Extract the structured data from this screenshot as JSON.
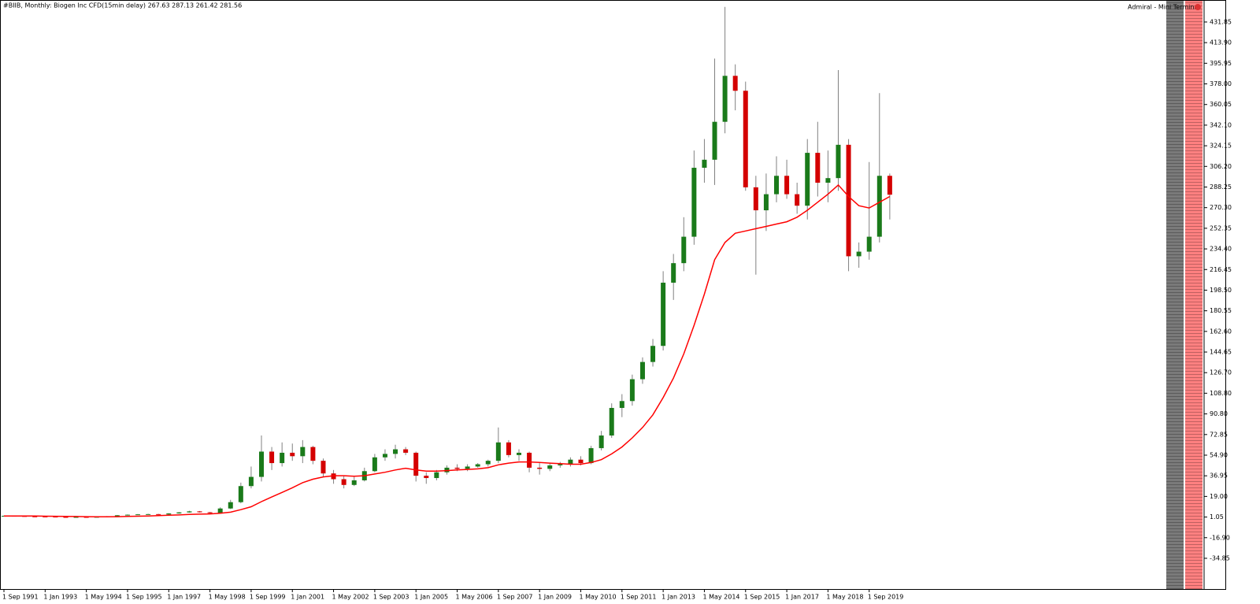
{
  "header": {
    "symbol_info": "#BIIB, Monthly:  Biogen Inc CFD(15min delay)  267.63 287.13 261.42 281.56",
    "panel_title": "Admiral - Mini Terminal"
  },
  "chart_data": {
    "type": "candlestick",
    "categories": [
      "1 Sep 1991",
      null,
      null,
      null,
      "1 Jan 1993",
      null,
      null,
      null,
      "1 May 1994",
      null,
      null,
      null,
      "1 Sep 1995",
      null,
      null,
      null,
      "1 Jan 1997",
      null,
      null,
      null,
      "1 May 1998",
      null,
      null,
      null,
      "1 Sep 1999",
      null,
      null,
      null,
      "1 Jan 2001",
      null,
      null,
      null,
      "1 May 2002",
      null,
      null,
      null,
      "1 Sep 2003",
      null,
      null,
      null,
      "1 Jan 2005",
      null,
      null,
      null,
      "1 May 2006",
      null,
      null,
      null,
      "1 Sep 2007",
      null,
      null,
      null,
      "1 Jan 2009",
      null,
      null,
      null,
      "1 May 2010",
      null,
      null,
      null,
      "1 Sep 2011",
      null,
      null,
      null,
      "1 Jan 2013",
      null,
      null,
      null,
      "1 May 2014",
      null,
      null,
      null,
      "1 Sep 2015",
      null,
      null,
      null,
      "1 Jan 2017",
      null,
      null,
      null,
      "1 May 2018",
      null,
      null,
      null,
      "1 Sep 2019",
      null,
      null
    ],
    "open": [
      2.0,
      2.1,
      1.9,
      1.6,
      1.5,
      1.4,
      1.1,
      1.0,
      1.1,
      0.9,
      1.2,
      1.8,
      2.6,
      3.1,
      3.4,
      3.6,
      3.3,
      4.2,
      5.1,
      6.0,
      5.2,
      4.4,
      8.5,
      14,
      28,
      36,
      58,
      48,
      57,
      54,
      62,
      50,
      39,
      34,
      29,
      33,
      41,
      53,
      56,
      60,
      57,
      37,
      35,
      40,
      44,
      43,
      45,
      47,
      50,
      66,
      55,
      57,
      44,
      43,
      46,
      47,
      51,
      48,
      61,
      72,
      96,
      102,
      121,
      136,
      150,
      205,
      222,
      245,
      305,
      312,
      345,
      385,
      372,
      288,
      268,
      282,
      298,
      282,
      272,
      318,
      292,
      296,
      325,
      228,
      232,
      245,
      298
    ],
    "high": [
      2.4,
      2.3,
      2.0,
      1.8,
      1.7,
      1.5,
      1.3,
      1.2,
      1.2,
      1.3,
      1.9,
      2.8,
      3.3,
      3.7,
      3.9,
      3.8,
      4.4,
      5.4,
      6.5,
      6.3,
      5.5,
      9.5,
      16,
      31,
      45,
      72,
      62,
      66,
      65,
      68,
      63,
      52,
      42,
      37,
      36,
      44,
      56,
      60,
      64,
      62,
      58,
      40,
      42,
      46,
      47,
      47,
      48,
      51,
      79,
      68,
      60,
      58,
      48,
      48,
      49,
      53,
      54,
      63,
      76,
      100,
      108,
      125,
      140,
      156,
      215,
      230,
      262,
      320,
      330,
      400,
      445,
      395,
      380,
      298,
      300,
      315,
      312,
      292,
      330,
      345,
      320,
      390,
      330,
      240,
      310,
      370,
      300
    ],
    "low": [
      1.8,
      1.8,
      1.5,
      1.4,
      1.3,
      1.0,
      0.9,
      0.9,
      0.8,
      0.8,
      1.1,
      1.7,
      2.4,
      2.9,
      3.2,
      3.1,
      3.2,
      4.0,
      4.9,
      5.0,
      4.0,
      4.2,
      8.0,
      13,
      26,
      32,
      42,
      45,
      50,
      48,
      47,
      36,
      30,
      26,
      28,
      32,
      40,
      50,
      52,
      55,
      32,
      30,
      33,
      38,
      41,
      41,
      44,
      45,
      48,
      53,
      50,
      40,
      38,
      41,
      44,
      45,
      46,
      47,
      59,
      70,
      88,
      98,
      117,
      132,
      146,
      190,
      215,
      238,
      292,
      290,
      335,
      355,
      285,
      212,
      250,
      275,
      278,
      265,
      260,
      280,
      275,
      285,
      215,
      218,
      225,
      240,
      260
    ],
    "close": [
      2.1,
      1.9,
      1.6,
      1.5,
      1.4,
      1.1,
      1.0,
      1.1,
      0.9,
      1.2,
      1.8,
      2.6,
      3.1,
      3.4,
      3.6,
      3.3,
      4.2,
      5.1,
      6.0,
      5.2,
      4.4,
      8.5,
      14,
      28,
      36,
      58,
      48,
      57,
      54,
      62,
      50,
      39,
      34,
      29,
      33,
      41,
      53,
      56,
      60,
      57,
      37,
      35,
      40,
      44,
      43,
      45,
      47,
      50,
      66,
      55,
      57,
      44,
      43,
      46,
      47,
      51,
      48,
      61,
      72,
      96,
      102,
      121,
      136,
      150,
      205,
      222,
      245,
      305,
      312,
      345,
      385,
      372,
      288,
      268,
      282,
      298,
      282,
      272,
      318,
      292,
      296,
      325,
      228,
      232,
      245,
      298,
      281.56
    ],
    "ma_values": [
      2.0,
      2.0,
      2.0,
      1.9,
      1.8,
      1.7,
      1.6,
      1.5,
      1.4,
      1.3,
      1.3,
      1.4,
      1.6,
      1.8,
      2.0,
      2.3,
      2.6,
      2.9,
      3.3,
      3.6,
      3.8,
      4.3,
      5.3,
      7.5,
      10,
      14.5,
      18.5,
      22.5,
      26.5,
      31,
      34,
      36,
      37,
      37,
      36.5,
      37,
      38.5,
      40,
      42,
      43.5,
      42,
      41,
      41,
      41.5,
      42,
      42.5,
      43,
      44,
      46.5,
      48,
      49,
      49,
      48.5,
      48,
      47.5,
      47,
      47,
      48.5,
      51,
      56,
      62,
      70,
      79,
      90,
      105,
      122,
      143,
      168,
      195,
      225,
      240,
      248,
      250,
      252,
      254,
      256,
      258,
      262,
      268,
      275,
      282,
      290,
      280,
      272,
      270,
      275,
      280
    ],
    "ma_color": "#ff0000",
    "bull_color": "#1a7a1a",
    "bear_color": "#d40000",
    "wick_color": "#808080",
    "ylim": [
      -61.6,
      451.0
    ],
    "yticks": [
      {
        "value": 431.85,
        "label": "431.85"
      },
      {
        "value": 413.9,
        "label": "413.90"
      },
      {
        "value": 395.95,
        "label": "395.95"
      },
      {
        "value": 378,
        "label": "378.00"
      },
      {
        "value": 360.05,
        "label": "360.05"
      },
      {
        "value": 342.1,
        "label": "342.10"
      },
      {
        "value": 324.15,
        "label": "324.15"
      },
      {
        "value": 306.2,
        "label": "306.20"
      },
      {
        "value": 288.25,
        "label": "288.25"
      },
      {
        "value": 270.3,
        "label": "270.30"
      },
      {
        "value": 252.35,
        "label": "252.35"
      },
      {
        "value": 234.4,
        "label": "234.40"
      },
      {
        "value": 216.45,
        "label": "216.45"
      },
      {
        "value": 198.5,
        "label": "198.50"
      },
      {
        "value": 180.55,
        "label": "180.55"
      },
      {
        "value": 162.6,
        "label": "162.60"
      },
      {
        "value": 144.65,
        "label": "144.65"
      },
      {
        "value": 126.7,
        "label": "126.70"
      },
      {
        "value": 108.8,
        "label": "108.80"
      },
      {
        "value": 90.8,
        "label": "90.80"
      },
      {
        "value": 72.85,
        "label": "72.85"
      },
      {
        "value": 54.9,
        "label": "54.90"
      },
      {
        "value": 36.95,
        "label": "36.95"
      },
      {
        "value": 19,
        "label": "19.00"
      },
      {
        "value": 1.05,
        "label": "1.05"
      },
      {
        "value": -16.9,
        "label": "-16.90"
      },
      {
        "value": -34.85,
        "label": "-34.85"
      }
    ]
  }
}
